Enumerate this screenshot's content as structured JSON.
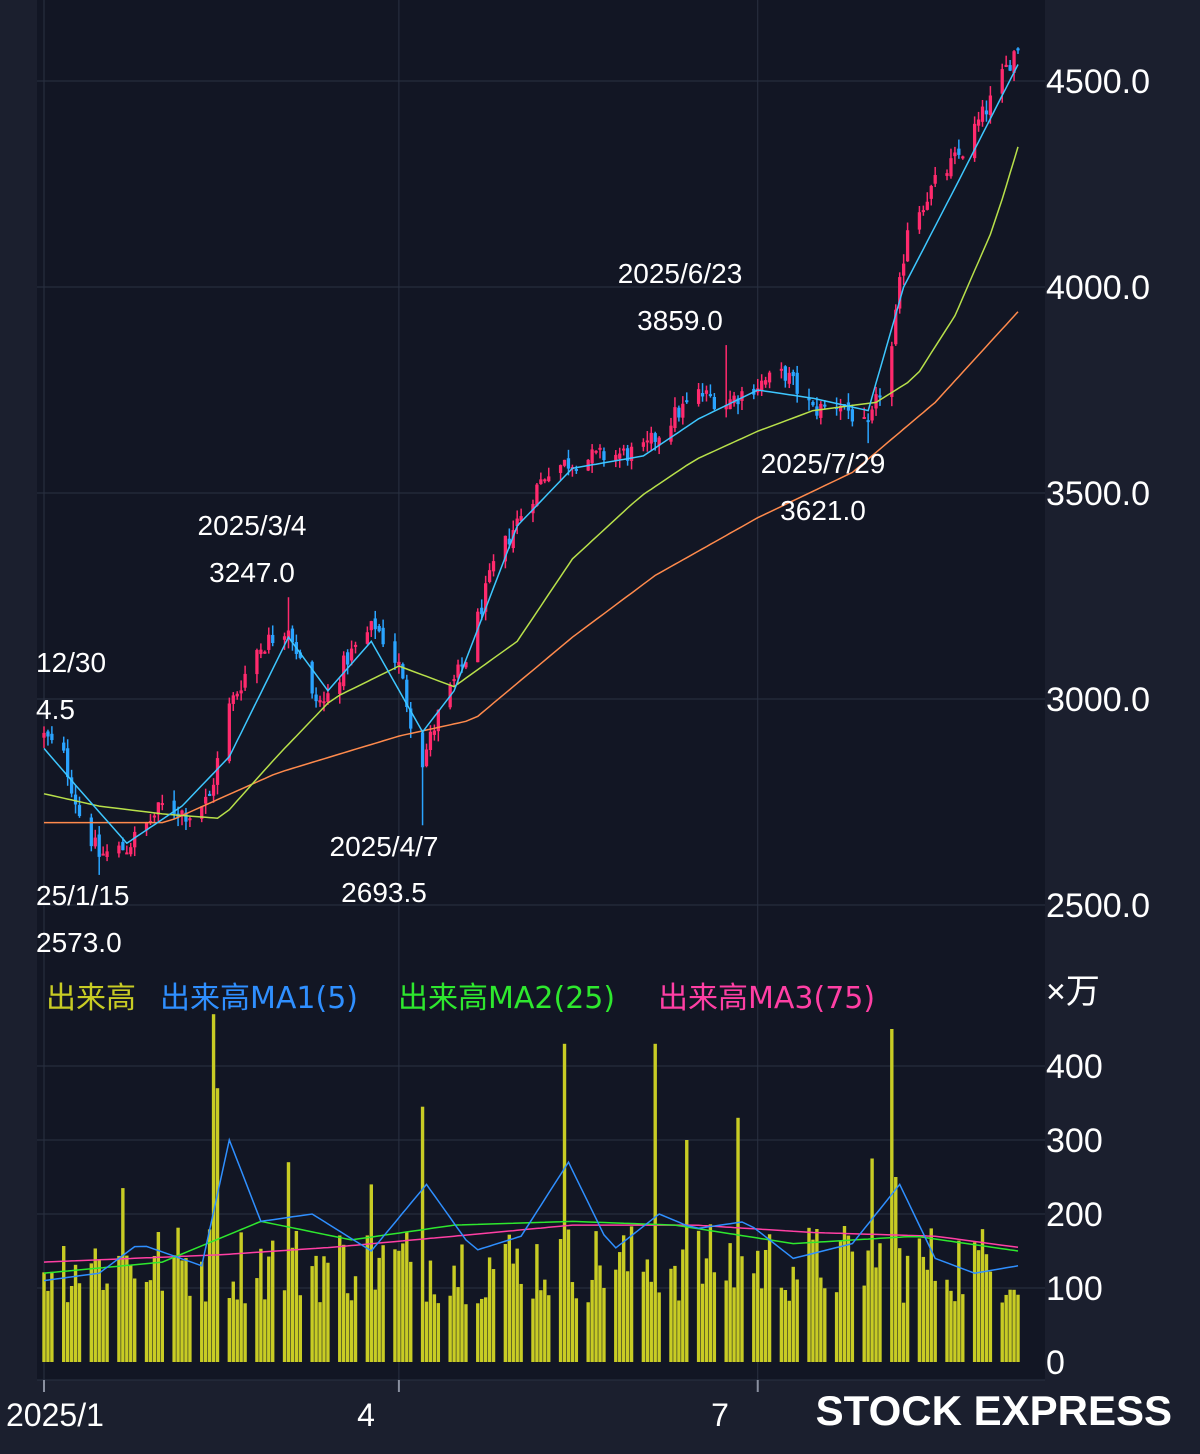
{
  "brand": "STOCK EXPRESS",
  "colors": {
    "background": "#1b1f2e",
    "plot_background": "#121624",
    "grid": "#2a3142",
    "candle_up": "#ff2a6d",
    "candle_down": "#2aa4ff",
    "price_ma_short": "#3ec7ff",
    "price_ma_mid": "#b8e04a",
    "price_ma_long": "#ff8a4c",
    "volume_bar": "#c8cc24",
    "volume_ma1": "#2f8fff",
    "volume_ma2": "#2ee82e",
    "volume_ma3": "#ff3fa4"
  },
  "chart_data": [
    {
      "type": "candlestick",
      "title": "",
      "y_ticks": [
        "4500.0",
        "4000.0",
        "3500.0",
        "3000.0",
        "2500.0"
      ],
      "ylim": [
        2400,
        4720
      ],
      "x_ticks": [
        "2025/1",
        "4",
        "7"
      ],
      "x_range": [
        "2025-01-01",
        "2025-09-05"
      ],
      "grid": true,
      "price_anchors": [
        {
          "date": "2025-01-01",
          "close": 2910
        },
        {
          "date": "2025-01-06",
          "close": 2860
        },
        {
          "date": "2025-01-10",
          "close": 2720
        },
        {
          "date": "2025-01-15",
          "close": 2620
        },
        {
          "date": "2025-01-22",
          "close": 2640
        },
        {
          "date": "2025-01-31",
          "close": 2740
        },
        {
          "date": "2025-02-07",
          "close": 2720
        },
        {
          "date": "2025-02-12",
          "close": 2760
        },
        {
          "date": "2025-02-17",
          "close": 2980
        },
        {
          "date": "2025-02-24",
          "close": 3120
        },
        {
          "date": "2025-03-04",
          "close": 3180
        },
        {
          "date": "2025-03-10",
          "close": 3000
        },
        {
          "date": "2025-03-13",
          "close": 2990
        },
        {
          "date": "2025-03-19",
          "close": 3100
        },
        {
          "date": "2025-03-26",
          "close": 3180
        },
        {
          "date": "2025-04-01",
          "close": 3080
        },
        {
          "date": "2025-04-04",
          "close": 2950
        },
        {
          "date": "2025-04-07",
          "close": 2850
        },
        {
          "date": "2025-04-11",
          "close": 2960
        },
        {
          "date": "2025-04-18",
          "close": 3100
        },
        {
          "date": "2025-04-25",
          "close": 3320
        },
        {
          "date": "2025-05-02",
          "close": 3450
        },
        {
          "date": "2025-05-09",
          "close": 3560
        },
        {
          "date": "2025-05-16",
          "close": 3580
        },
        {
          "date": "2025-05-23",
          "close": 3590
        },
        {
          "date": "2025-06-02",
          "close": 3600
        },
        {
          "date": "2025-06-09",
          "close": 3680
        },
        {
          "date": "2025-06-16",
          "close": 3740
        },
        {
          "date": "2025-06-23",
          "close": 3720
        },
        {
          "date": "2025-06-30",
          "close": 3760
        },
        {
          "date": "2025-07-08",
          "close": 3790
        },
        {
          "date": "2025-07-15",
          "close": 3700
        },
        {
          "date": "2025-07-22",
          "close": 3720
        },
        {
          "date": "2025-07-29",
          "close": 3650
        },
        {
          "date": "2025-08-04",
          "close": 3850
        },
        {
          "date": "2025-08-08",
          "close": 4150
        },
        {
          "date": "2025-08-15",
          "close": 4250
        },
        {
          "date": "2025-08-22",
          "close": 4330
        },
        {
          "date": "2025-08-29",
          "close": 4450
        },
        {
          "date": "2025-09-05",
          "close": 4590
        }
      ],
      "ma_short": {
        "dates": [
          "2025-01-01",
          "2025-01-10",
          "2025-01-22",
          "2025-02-05",
          "2025-02-17",
          "2025-03-04",
          "2025-03-14",
          "2025-03-25",
          "2025-04-07",
          "2025-04-15",
          "2025-05-01",
          "2025-05-15",
          "2025-06-02",
          "2025-06-16",
          "2025-07-01",
          "2025-07-15",
          "2025-07-29",
          "2025-08-07",
          "2025-08-20",
          "2025-09-05"
        ],
        "values": [
          2880,
          2780,
          2650,
          2740,
          2860,
          3150,
          3020,
          3140,
          2920,
          3020,
          3420,
          3560,
          3590,
          3680,
          3750,
          3730,
          3700,
          4000,
          4240,
          4540
        ]
      },
      "ma_mid": {
        "dates": [
          "2025-01-01",
          "2025-01-15",
          "2025-02-01",
          "2025-02-15",
          "2025-03-01",
          "2025-03-15",
          "2025-04-01",
          "2025-04-15",
          "2025-05-01",
          "2025-05-15",
          "2025-06-01",
          "2025-06-15",
          "2025-07-01",
          "2025-07-15",
          "2025-07-31",
          "2025-08-10",
          "2025-08-20",
          "2025-08-30",
          "2025-09-05"
        ],
        "values": [
          2770,
          2740,
          2720,
          2710,
          2860,
          3000,
          3080,
          3030,
          3140,
          3340,
          3490,
          3580,
          3650,
          3700,
          3720,
          3780,
          3930,
          4150,
          4340
        ]
      },
      "ma_long": {
        "dates": [
          "2025-01-01",
          "2025-02-01",
          "2025-03-01",
          "2025-04-01",
          "2025-04-20",
          "2025-05-15",
          "2025-06-05",
          "2025-07-01",
          "2025-07-25",
          "2025-08-15",
          "2025-09-05"
        ],
        "values": [
          2700,
          2700,
          2820,
          2910,
          2950,
          3150,
          3300,
          3440,
          3550,
          3720,
          3940
        ]
      },
      "annotations": [
        {
          "date_label": "12/30",
          "value_label": "4.5",
          "date": "2024-12-30"
        },
        {
          "date_label": "25/1/15",
          "value_label": "2573.0",
          "date": "2025-01-15",
          "value": 2573.0
        },
        {
          "date_label": "2025/3/4",
          "value_label": "3247.0",
          "date": "2025-03-04",
          "value": 3247.0
        },
        {
          "date_label": "2025/4/7",
          "value_label": "2693.5",
          "date": "2025-04-07",
          "value": 2693.5
        },
        {
          "date_label": "2025/6/23",
          "value_label": "3859.0",
          "date": "2025-06-23",
          "value": 3859.0
        },
        {
          "date_label": "2025/7/29",
          "value_label": "3621.0",
          "date": "2025-07-29",
          "value": 3621.0
        }
      ]
    },
    {
      "type": "bar",
      "title": "",
      "unit_label": "×万",
      "y_ticks": [
        "400",
        "300",
        "200",
        "100",
        "0"
      ],
      "ylim": [
        0,
        470
      ],
      "x_range": [
        "2025-01-01",
        "2025-09-05"
      ],
      "legend": [
        "出来高",
        "出来高MA1(5)",
        "出来高MA2(25)",
        "出来高MA3(75)"
      ],
      "legend_placement": "top-left",
      "volume_spikes": [
        {
          "date": "2025-01-21",
          "value": 235
        },
        {
          "date": "2025-02-13",
          "value": 470
        },
        {
          "date": "2025-02-14",
          "value": 370
        },
        {
          "date": "2025-03-04",
          "value": 270
        },
        {
          "date": "2025-03-25",
          "value": 240
        },
        {
          "date": "2025-04-07",
          "value": 345
        },
        {
          "date": "2025-05-13",
          "value": 430
        },
        {
          "date": "2025-06-05",
          "value": 430
        },
        {
          "date": "2025-06-13",
          "value": 300
        },
        {
          "date": "2025-06-26",
          "value": 330
        },
        {
          "date": "2025-07-30",
          "value": 275
        },
        {
          "date": "2025-08-04",
          "value": 450
        },
        {
          "date": "2025-08-05",
          "value": 250
        }
      ],
      "typical_volume": 130,
      "ma1": {
        "dates": [
          "2025-01-01",
          "2025-01-15",
          "2025-01-25",
          "2025-02-10",
          "2025-02-17",
          "2025-02-25",
          "2025-03-10",
          "2025-03-25",
          "2025-04-08",
          "2025-04-20",
          "2025-05-02",
          "2025-05-14",
          "2025-05-25",
          "2025-06-06",
          "2025-06-15",
          "2025-06-28",
          "2025-07-10",
          "2025-07-25",
          "2025-08-06",
          "2025-08-15",
          "2025-08-25",
          "2025-09-05"
        ],
        "values": [
          110,
          120,
          160,
          130,
          300,
          190,
          200,
          150,
          240,
          150,
          170,
          270,
          150,
          200,
          180,
          190,
          140,
          160,
          240,
          140,
          120,
          130
        ]
      },
      "ma2": {
        "dates": [
          "2025-01-01",
          "2025-01-31",
          "2025-02-25",
          "2025-03-20",
          "2025-04-15",
          "2025-05-15",
          "2025-06-10",
          "2025-07-10",
          "2025-08-10",
          "2025-09-05"
        ],
        "values": [
          120,
          135,
          190,
          165,
          185,
          190,
          185,
          160,
          170,
          150
        ]
      },
      "ma3": {
        "dates": [
          "2025-01-01",
          "2025-02-15",
          "2025-03-15",
          "2025-04-15",
          "2025-05-15",
          "2025-06-15",
          "2025-07-15",
          "2025-08-15",
          "2025-09-05"
        ],
        "values": [
          135,
          145,
          155,
          170,
          185,
          185,
          175,
          170,
          155
        ]
      }
    }
  ]
}
